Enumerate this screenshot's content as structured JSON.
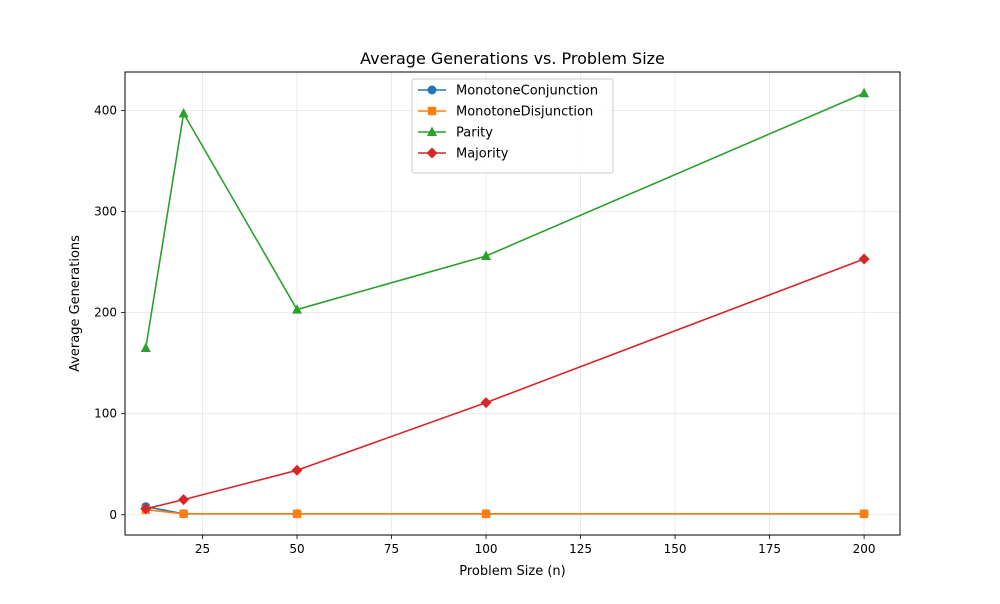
{
  "chart_data": {
    "type": "line",
    "title": "Average Generations vs. Problem Size",
    "xlabel": "Problem Size (n)",
    "ylabel": "Average Generations",
    "xlim": [
      4.5,
      209.5
    ],
    "ylim": [
      -20,
      438
    ],
    "x_ticks": [
      25,
      50,
      75,
      100,
      125,
      150,
      175,
      200
    ],
    "y_ticks": [
      0,
      100,
      200,
      300,
      400
    ],
    "grid": true,
    "legend_position": "upper center",
    "x": [
      10,
      20,
      50,
      100,
      200
    ],
    "series": [
      {
        "name": "MonotoneConjunction",
        "color": "#1f77b4",
        "marker": "circle",
        "values": [
          8,
          1,
          1,
          1,
          1
        ]
      },
      {
        "name": "MonotoneDisjunction",
        "color": "#ff7f0e",
        "marker": "square",
        "values": [
          5,
          1,
          1,
          1,
          1
        ]
      },
      {
        "name": "Parity",
        "color": "#2ca02c",
        "marker": "triangle",
        "values": [
          165,
          397,
          203,
          256,
          417
        ]
      },
      {
        "name": "Majority",
        "color": "#d62728",
        "marker": "diamond",
        "values": [
          6,
          15,
          44,
          111,
          253
        ]
      }
    ]
  }
}
